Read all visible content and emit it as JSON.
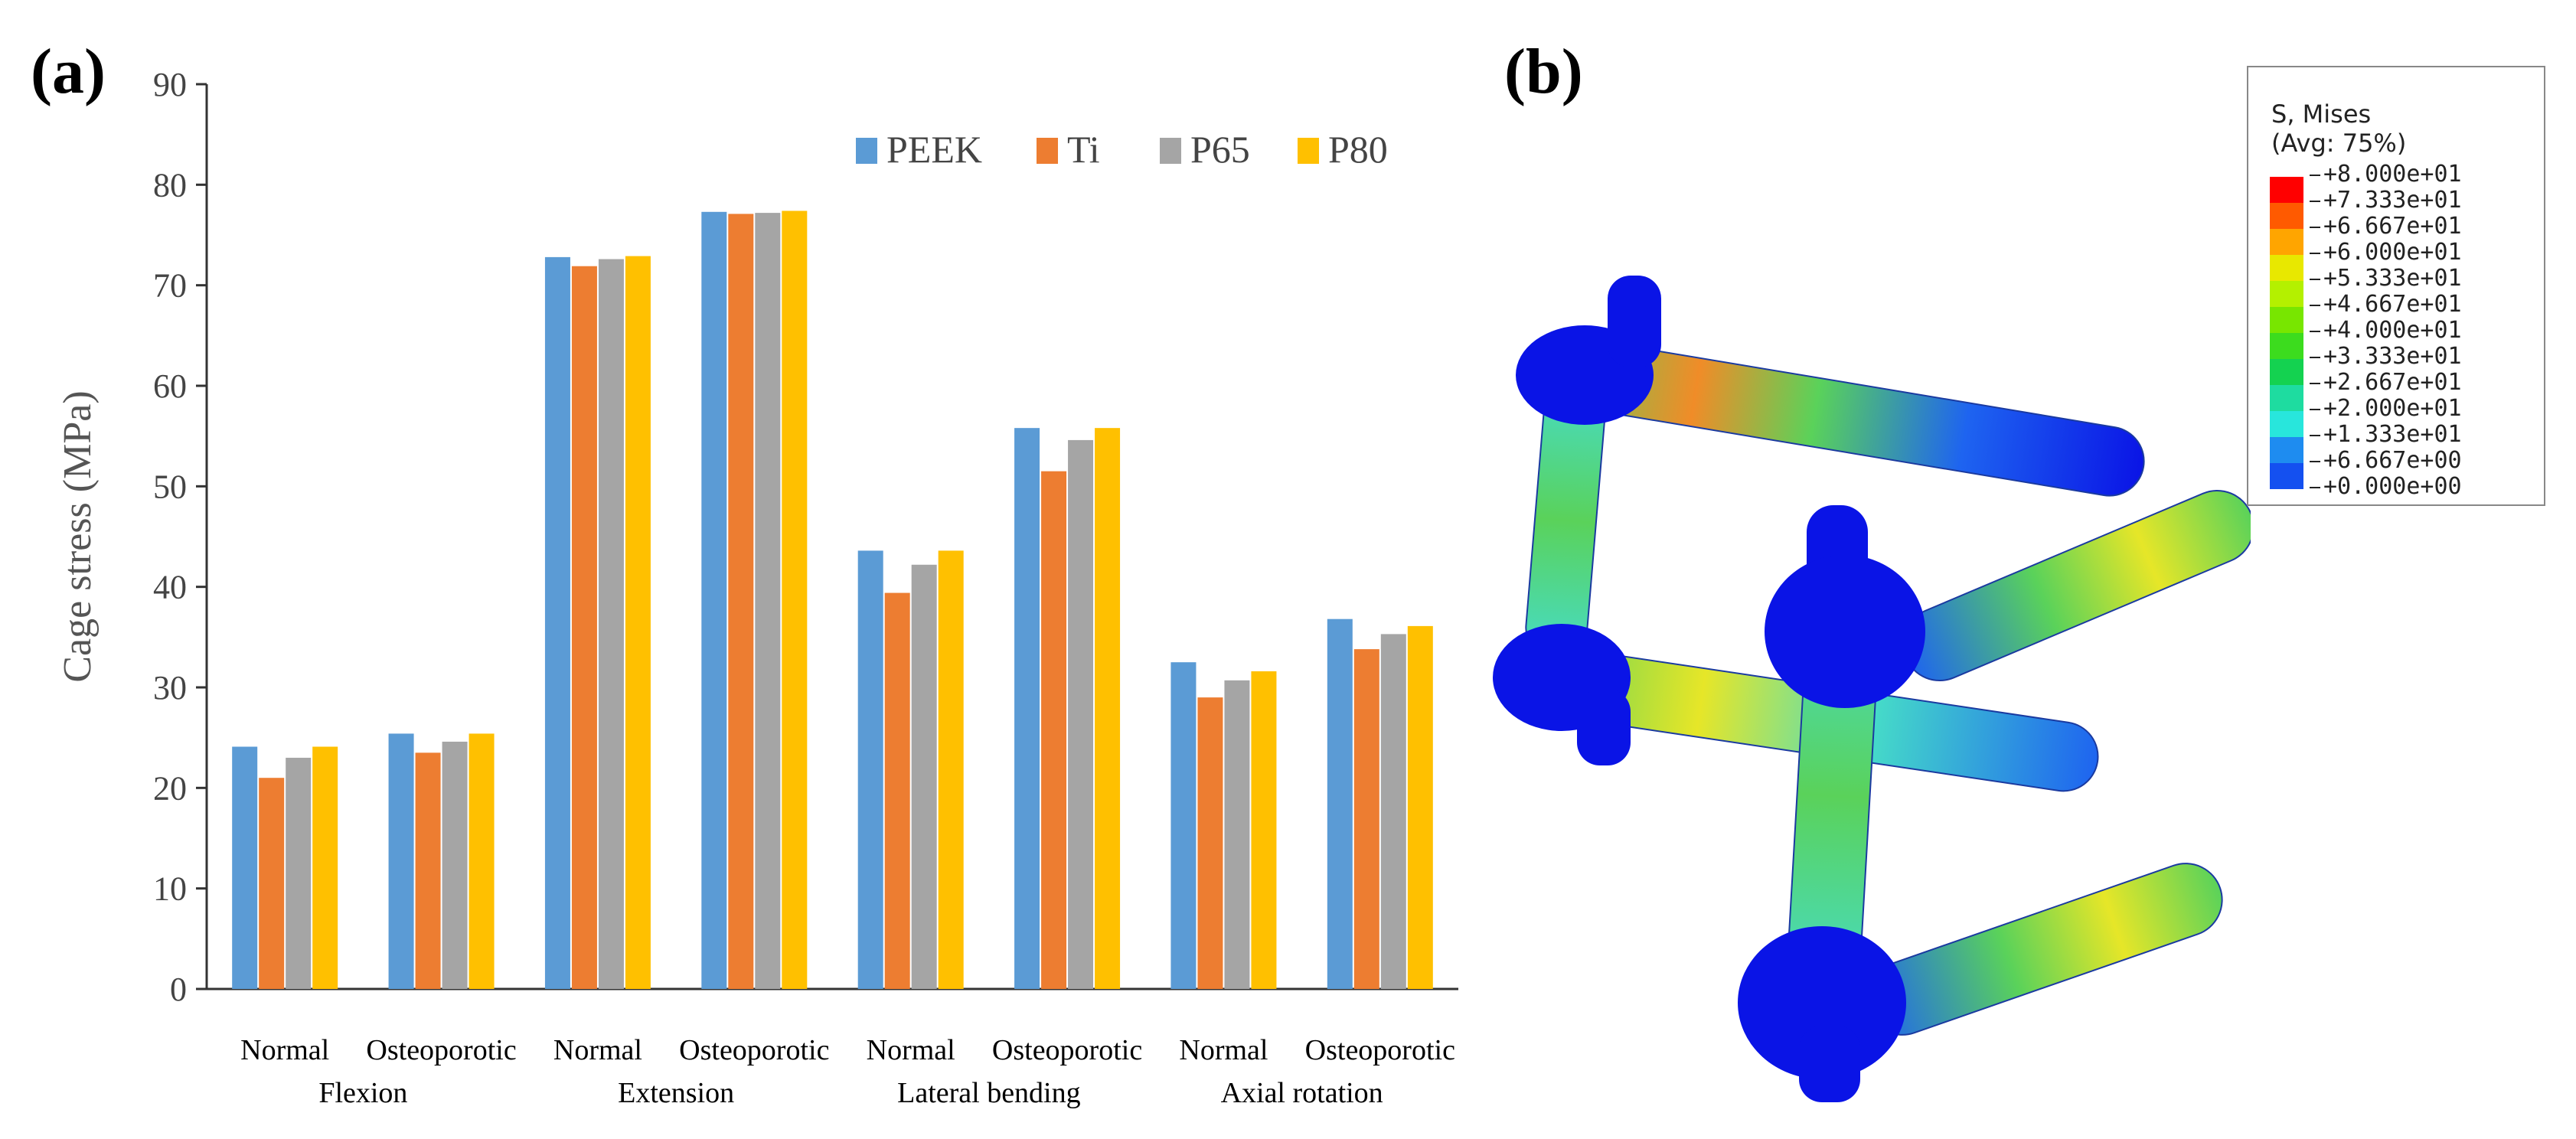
{
  "panels": {
    "a": "(a)",
    "b": "(b)"
  },
  "chart_data": {
    "type": "bar",
    "title": "",
    "ylabel": "Cage stress (MPa)",
    "xlabel": "",
    "ylim": [
      0,
      90
    ],
    "yticks": [
      0,
      10,
      20,
      30,
      40,
      50,
      60,
      70,
      80,
      90
    ],
    "grid": false,
    "legend_position": "top-right",
    "categories": [
      "Normal",
      "Osteoporotic",
      "Normal",
      "Osteoporotic",
      "Normal",
      "Osteoporotic",
      "Normal",
      "Osteoporotic"
    ],
    "groups": [
      "Flexion",
      "Extension",
      "Lateral bending",
      "Axial rotation"
    ],
    "series": [
      {
        "name": "PEEK",
        "color": "#5B9BD5",
        "values": [
          24.1,
          25.4,
          72.8,
          77.3,
          43.6,
          55.8,
          32.5,
          36.8
        ]
      },
      {
        "name": "Ti",
        "color": "#ED7D31",
        "values": [
          21.0,
          23.5,
          71.9,
          77.1,
          39.4,
          51.5,
          29.0,
          33.8
        ]
      },
      {
        "name": "P65",
        "color": "#A5A5A5",
        "values": [
          23.0,
          24.6,
          72.6,
          77.2,
          42.2,
          54.6,
          30.7,
          35.3
        ]
      },
      {
        "name": "P80",
        "color": "#FFC000",
        "values": [
          24.1,
          25.4,
          72.9,
          77.4,
          43.6,
          55.8,
          31.6,
          36.1
        ]
      }
    ]
  },
  "colorbar": {
    "title_line1": "S, Mises",
    "title_line2": "(Avg: 75%)",
    "levels": [
      "+8.000e+01",
      "+7.333e+01",
      "+6.667e+01",
      "+6.000e+01",
      "+5.333e+01",
      "+4.667e+01",
      "+4.000e+01",
      "+3.333e+01",
      "+2.667e+01",
      "+2.000e+01",
      "+1.333e+01",
      "+6.667e+00",
      "+0.000e+00"
    ],
    "colors": [
      "#FF0000",
      "#FF5A00",
      "#FFA500",
      "#E8E800",
      "#B4F000",
      "#78E600",
      "#3CDC1E",
      "#14D250",
      "#1EDCA0",
      "#28E6DC",
      "#1E8CF0",
      "#1450F0",
      "#0000FF"
    ]
  },
  "fem_colors": {
    "node": "#0A14E6",
    "rod_high": "#5AD25A",
    "rod_mid": "#46DCC8",
    "rod_low": "#1E64F0",
    "hot": "#E6E628",
    "peak": "#F08C28"
  }
}
